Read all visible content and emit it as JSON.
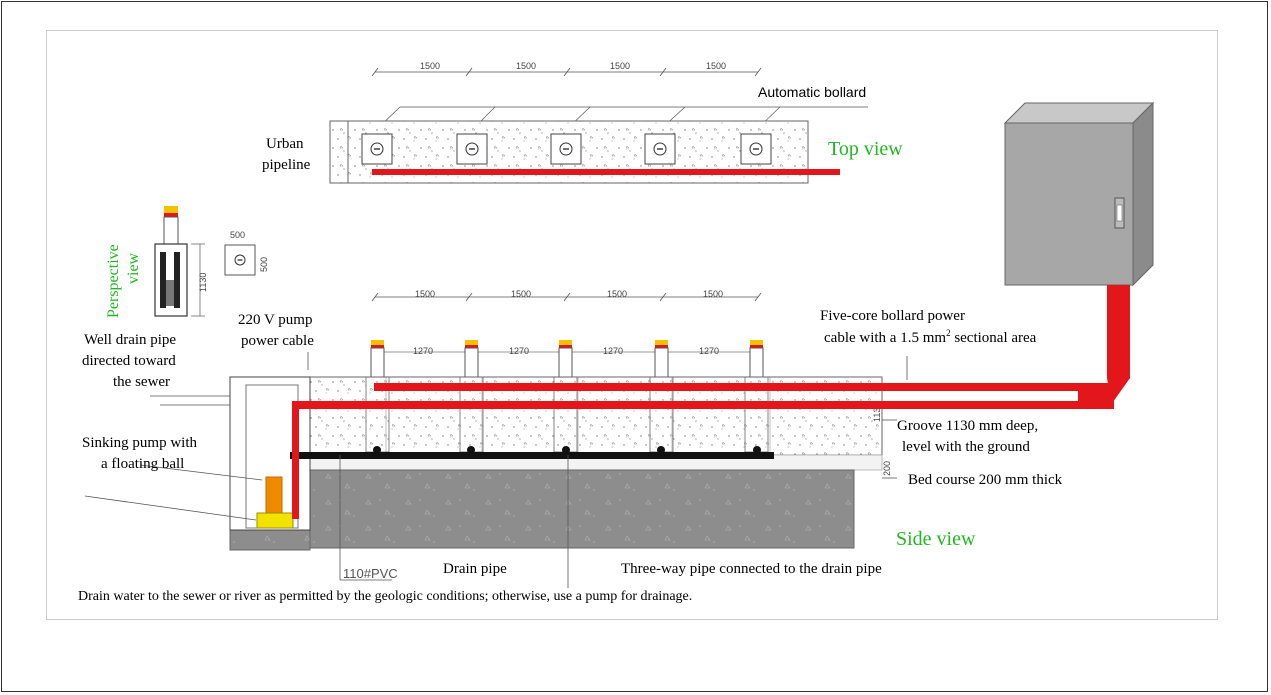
{
  "labels": {
    "automatic_bollard": "Automatic bollard",
    "urban": "Urban",
    "pipeline": "pipeline",
    "top_view": "Top view",
    "perspective": "Perspective",
    "view": "view",
    "pump_cable_1": "220 V pump",
    "pump_cable_2": "power cable",
    "well_drain_1": "Well drain pipe",
    "well_drain_2": "directed toward",
    "well_drain_3": "the sewer",
    "sinking_pump_1": "Sinking pump with",
    "sinking_pump_2": "a floating ball",
    "power_cable_1": "Five-core bollard power",
    "power_cable_2a": "cable with a 1.5 mm",
    "power_cable_2sup": "2",
    "power_cable_2b": " sectional area",
    "groove_1": "Groove 1130 mm deep,",
    "groove_2": "level with the ground",
    "bed_course": "Bed course 200 mm thick",
    "side_view": "Side view",
    "pvc": "110#PVC",
    "drain_pipe": "Drain pipe",
    "three_way": "Three-way pipe connected to the drain pipe",
    "footnote": "Drain water to the sewer or river as permitted by the geologic conditions; otherwise, use a pump for drainage."
  },
  "dimensions": {
    "spacing": "1500",
    "inner_spacing": "1270",
    "box_size": "500",
    "height": "1130",
    "groove_depth": "1130",
    "bed": "200"
  },
  "colors": {
    "cable_red": "#e3161b",
    "label_green": "#22b722",
    "bollard_yellow": "#f2c200",
    "concrete_dark": "#8a8a8a",
    "cabinet_gray": "#a7a7a7"
  }
}
